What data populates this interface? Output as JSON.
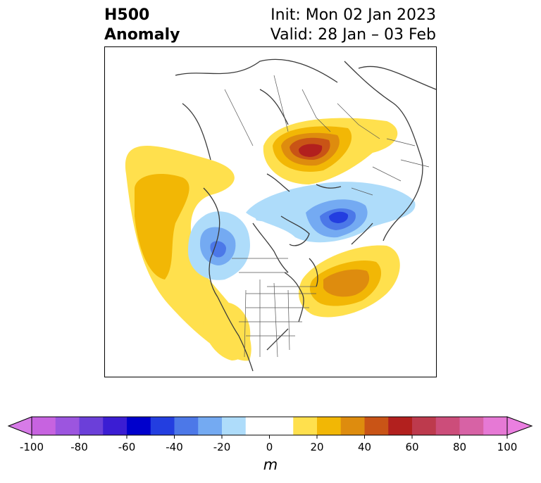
{
  "header": {
    "title_line1": "H500",
    "title_line2": "Anomaly",
    "init_text": "Init: Mon 02 Jan 2023",
    "valid_text": "Valid: 28 Jan – 03 Feb"
  },
  "map": {
    "projection": "north-polar-stereographic",
    "features": [
      "coastlines",
      "country-borders",
      "state-borders"
    ],
    "anomaly_centers": [
      {
        "region": "western-russia-ural",
        "sign": "positive",
        "peak_m": 60
      },
      {
        "region": "north-pacific",
        "sign": "positive",
        "peak_m": 30
      },
      {
        "region": "north-atlantic",
        "sign": "positive",
        "peak_m": 40
      },
      {
        "region": "southwest-us",
        "sign": "positive",
        "peak_m": 20
      },
      {
        "region": "northeast-siberia",
        "sign": "negative",
        "peak_m": -40
      },
      {
        "region": "gulf-of-alaska",
        "sign": "negative",
        "peak_m": -30
      },
      {
        "region": "arctic-canada",
        "sign": "negative",
        "peak_m": -10
      }
    ]
  },
  "colorbar": {
    "levels": [
      -100,
      -90,
      -80,
      -70,
      -60,
      -50,
      -40,
      -30,
      -20,
      -10,
      10,
      20,
      30,
      40,
      50,
      60,
      70,
      80,
      90,
      100
    ],
    "colors": [
      "#c763e0",
      "#9c55df",
      "#6b3fd9",
      "#3b1dd3",
      "#0000cc",
      "#233ee0",
      "#4c78e8",
      "#74aaf2",
      "#aedcfa",
      "#ffffff",
      "#ffe04d",
      "#f2b705",
      "#de8c0e",
      "#c95416",
      "#b2201e",
      "#bd3a4d",
      "#cc4d7a",
      "#d762a5",
      "#e679d5"
    ],
    "extend_low_color": "#d77be8",
    "extend_high_color": "#ea7fe0",
    "tick_labels": [
      "-100",
      "-80",
      "-60",
      "-40",
      "-20",
      "0",
      "20",
      "40",
      "60",
      "80",
      "100"
    ],
    "units_label": "m"
  }
}
